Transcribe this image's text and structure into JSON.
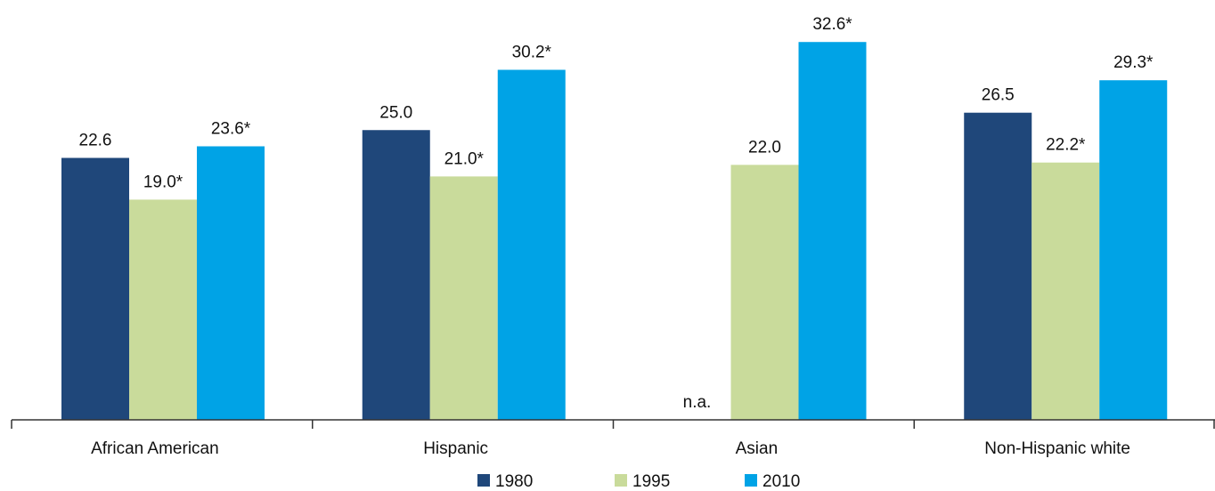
{
  "chart_data": {
    "type": "bar",
    "categories": [
      "African American",
      "Hispanic",
      "Asian",
      "Non-Hispanic white"
    ],
    "ylim": [
      0,
      35
    ],
    "grid": false,
    "legend_position": "bottom-center",
    "series": [
      {
        "name": "1980",
        "color": "#1f477a",
        "values": [
          22.6,
          25.0,
          null,
          26.5
        ],
        "labels": [
          "22.6",
          "25.0",
          "n.a.",
          "26.5"
        ]
      },
      {
        "name": "1995",
        "color": "#c9db9b",
        "values": [
          19.0,
          21.0,
          22.0,
          22.2
        ],
        "labels": [
          "19.0*",
          "21.0*",
          "22.0",
          "22.2*"
        ]
      },
      {
        "name": "2010",
        "color": "#00a3e6",
        "values": [
          23.6,
          30.2,
          32.6,
          29.3
        ],
        "labels": [
          "23.6*",
          "30.2*",
          "32.6*",
          "29.3*"
        ]
      }
    ]
  }
}
